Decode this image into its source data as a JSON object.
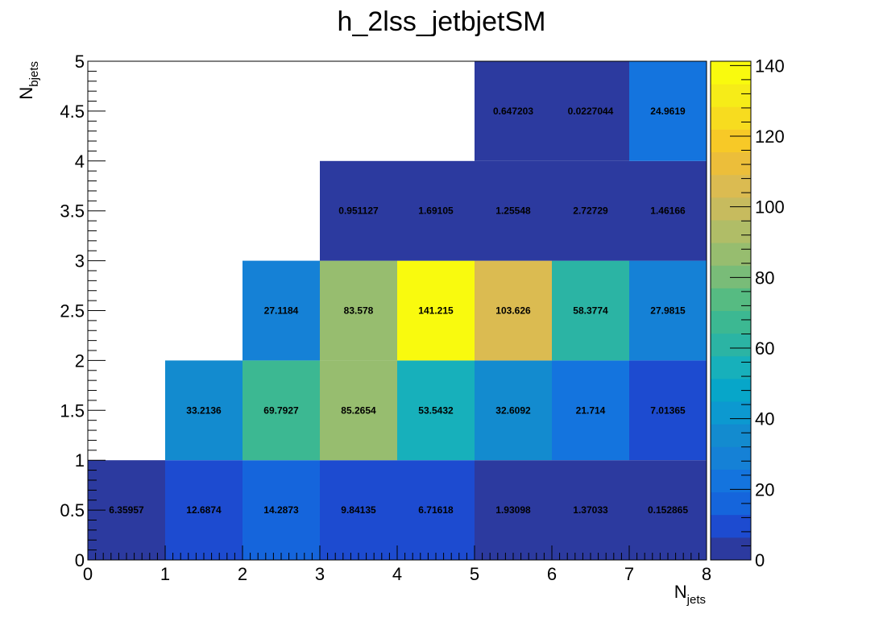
{
  "chart_data": {
    "type": "heatmap",
    "title": "h_2lss_jetbjetSM",
    "xlabel": {
      "main": "N",
      "sub": "jets"
    },
    "ylabel": {
      "main": "N",
      "sub": "bjets"
    },
    "xlim": [
      0,
      8
    ],
    "ylim": [
      0,
      5
    ],
    "zlim": [
      0,
      141.215
    ],
    "x_ticks": [
      "0",
      "1",
      "2",
      "3",
      "4",
      "5",
      "6",
      "7",
      "8"
    ],
    "y_ticks": [
      "0",
      "0.5",
      "1",
      "1.5",
      "2",
      "2.5",
      "3",
      "3.5",
      "4",
      "4.5",
      "5"
    ],
    "z_ticks": [
      "0",
      "20",
      "40",
      "60",
      "80",
      "100",
      "120",
      "140"
    ],
    "x_bin_edges": [
      0,
      1,
      2,
      3,
      4,
      5,
      6,
      7,
      8
    ],
    "y_bin_edges": [
      0,
      1,
      2,
      3,
      4,
      5
    ],
    "cells": [
      {
        "x": 0,
        "y": 0,
        "value": 6.35957,
        "label": "6.35957"
      },
      {
        "x": 1,
        "y": 0,
        "value": 12.6874,
        "label": "12.6874"
      },
      {
        "x": 2,
        "y": 0,
        "value": 14.2873,
        "label": "14.2873"
      },
      {
        "x": 3,
        "y": 0,
        "value": 9.84135,
        "label": "9.84135"
      },
      {
        "x": 4,
        "y": 0,
        "value": 6.71618,
        "label": "6.71618"
      },
      {
        "x": 5,
        "y": 0,
        "value": 1.93098,
        "label": "1.93098"
      },
      {
        "x": 6,
        "y": 0,
        "value": 1.37033,
        "label": "1.37033"
      },
      {
        "x": 7,
        "y": 0,
        "value": 0.152865,
        "label": "0.152865"
      },
      {
        "x": 1,
        "y": 1,
        "value": 33.2136,
        "label": "33.2136"
      },
      {
        "x": 2,
        "y": 1,
        "value": 69.7927,
        "label": "69.7927"
      },
      {
        "x": 3,
        "y": 1,
        "value": 85.2654,
        "label": "85.2654"
      },
      {
        "x": 4,
        "y": 1,
        "value": 53.5432,
        "label": "53.5432"
      },
      {
        "x": 5,
        "y": 1,
        "value": 32.6092,
        "label": "32.6092"
      },
      {
        "x": 6,
        "y": 1,
        "value": 21.714,
        "label": "21.714"
      },
      {
        "x": 7,
        "y": 1,
        "value": 7.01365,
        "label": "7.01365"
      },
      {
        "x": 2,
        "y": 2,
        "value": 27.1184,
        "label": "27.1184"
      },
      {
        "x": 3,
        "y": 2,
        "value": 83.578,
        "label": "83.578"
      },
      {
        "x": 4,
        "y": 2,
        "value": 141.215,
        "label": "141.215"
      },
      {
        "x": 5,
        "y": 2,
        "value": 103.626,
        "label": "103.626"
      },
      {
        "x": 6,
        "y": 2,
        "value": 58.3774,
        "label": "58.3774"
      },
      {
        "x": 7,
        "y": 2,
        "value": 27.9815,
        "label": "27.9815"
      },
      {
        "x": 3,
        "y": 3,
        "value": 0.951127,
        "label": "0.951127"
      },
      {
        "x": 4,
        "y": 3,
        "value": 1.69105,
        "label": "1.69105"
      },
      {
        "x": 5,
        "y": 3,
        "value": 1.25548,
        "label": "1.25548"
      },
      {
        "x": 6,
        "y": 3,
        "value": 2.72729,
        "label": "2.72729"
      },
      {
        "x": 7,
        "y": 3,
        "value": 1.46166,
        "label": "1.46166"
      },
      {
        "x": 5,
        "y": 4,
        "value": 0.647203,
        "label": "0.647203"
      },
      {
        "x": 6,
        "y": 4,
        "value": 0.0227044,
        "label": "0.0227044"
      },
      {
        "x": 7,
        "y": 4,
        "value": 24.9619,
        "label": "24.9619"
      }
    ],
    "palette": [
      "#2c3a9f",
      "#1d4bd0",
      "#1565dc",
      "#1474de",
      "#1581d6",
      "#138bcf",
      "#0c99d0",
      "#07a6c9",
      "#17b0bb",
      "#2bb4a4",
      "#3cb892",
      "#56bb82",
      "#79bc78",
      "#97bd6f",
      "#b0bd67",
      "#c7bb5e",
      "#dbbb51",
      "#ecbe3a",
      "#f7c927",
      "#f7dc1f",
      "#f6ec18",
      "#f9fa0e"
    ]
  }
}
